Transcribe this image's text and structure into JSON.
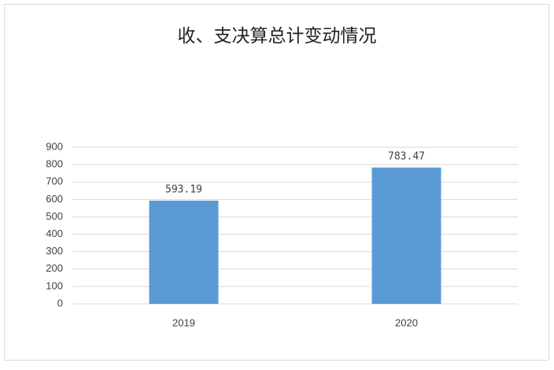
{
  "chart_data": {
    "type": "bar",
    "title": "收、支决算总计变动情况",
    "categories": [
      "2019",
      "2020"
    ],
    "values": [
      593.19,
      783.47
    ],
    "color": "#5b9bd5",
    "ylim": [
      0,
      900
    ],
    "yticks": [
      0,
      100,
      200,
      300,
      400,
      500,
      600,
      700,
      800,
      900
    ],
    "grid": true
  }
}
